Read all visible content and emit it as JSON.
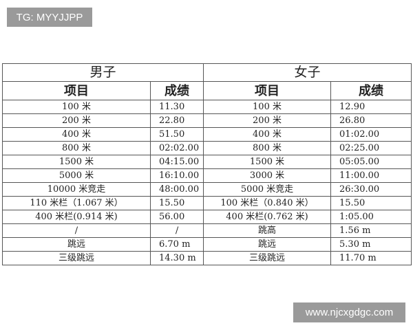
{
  "watermarks": {
    "top_left": "TG: MYYJJPP",
    "bottom_right": "www.njcxgdgc.com"
  },
  "table": {
    "groups": [
      "男子",
      "女子"
    ],
    "headers": [
      "项目",
      "成绩",
      "项目",
      "成绩"
    ],
    "rows": [
      [
        "100 米",
        "11.30",
        "100 米",
        "12.90"
      ],
      [
        "200 米",
        "22.80",
        "200 米",
        "26.80"
      ],
      [
        "400 米",
        "51.50",
        "400 米",
        "01:02.00"
      ],
      [
        "800 米",
        "02:02.00",
        "800 米",
        "02:25.00"
      ],
      [
        "1500 米",
        "04:15.00",
        "1500 米",
        "05:05.00"
      ],
      [
        "5000 米",
        "16:10.00",
        "3000 米",
        "11:00.00"
      ],
      [
        "10000 米竞走",
        "48:00.00",
        "5000 米竞走",
        "26:30.00"
      ],
      [
        "110 米栏（1.067 米）",
        "15.50",
        "100 米栏（0.840 米）",
        "15.50"
      ],
      [
        "400 米栏(0.914 米)",
        "56.00",
        "400 米栏(0.762 米)",
        "1:05.00"
      ],
      [
        "/",
        "/",
        "跳高",
        "1.56 m"
      ],
      [
        "跳远",
        "6.70 m",
        "跳远",
        "5.30 m"
      ],
      [
        "三级跳远",
        "14.30 m",
        "三级跳远",
        "11.70 m"
      ]
    ]
  }
}
